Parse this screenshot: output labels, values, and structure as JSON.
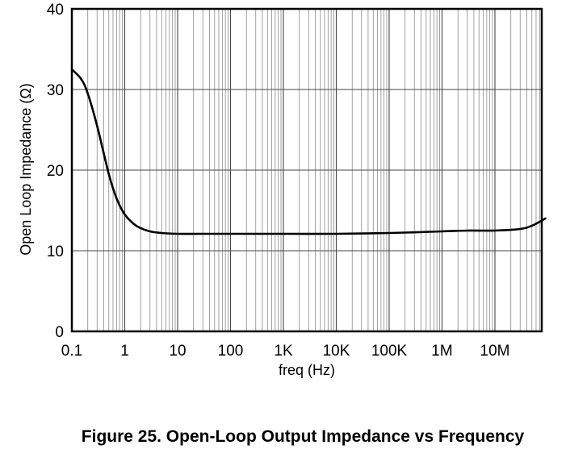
{
  "caption": "Figure 25. Open-Loop Output Impedance vs Frequency",
  "chart_data": {
    "type": "line",
    "title": "Figure 25. Open-Loop Output Impedance vs Frequency",
    "xlabel": "freq (Hz)",
    "ylabel": "Open Loop Impedance (Ω)",
    "x_scale": "log",
    "xlim": [
      0.1,
      90000000
    ],
    "ylim": [
      0,
      40
    ],
    "x_ticks": [
      0.1,
      1,
      10,
      100,
      1000,
      10000,
      100000,
      1000000,
      10000000
    ],
    "x_tick_labels": [
      "0.1",
      "1",
      "10",
      "100",
      "1K",
      "10K",
      "100K",
      "1M",
      "10M"
    ],
    "y_ticks": [
      0,
      10,
      20,
      30,
      40
    ],
    "y_tick_labels": [
      "0",
      "10",
      "20",
      "30",
      "40"
    ],
    "grid": true,
    "series": [
      {
        "name": "",
        "color": "#000000",
        "x": [
          0.1,
          0.15,
          0.2,
          0.3,
          0.5,
          0.7,
          1,
          1.5,
          2,
          3,
          5,
          10,
          30,
          100,
          1000,
          10000,
          100000,
          1000000,
          3000000,
          10000000,
          30000000,
          50000000,
          90000000
        ],
        "y": [
          32.5,
          31.3,
          29.5,
          25.5,
          19.5,
          16.5,
          14.5,
          13.3,
          12.8,
          12.4,
          12.2,
          12.1,
          12.1,
          12.1,
          12.1,
          12.1,
          12.2,
          12.4,
          12.5,
          12.5,
          12.7,
          13.1,
          14.0
        ]
      }
    ]
  }
}
